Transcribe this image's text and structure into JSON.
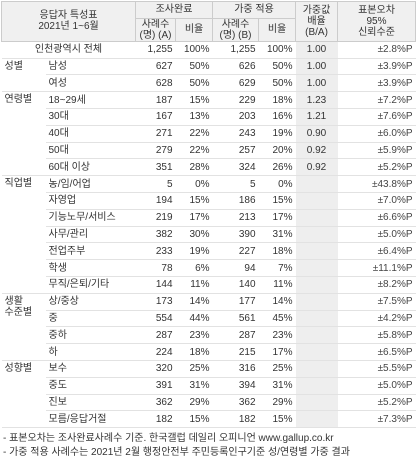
{
  "header": {
    "title": "응답자 특성표",
    "period": "2021년 1~6월",
    "survey": "조사완료",
    "weighted": "가중 적용",
    "ratio": [
      "가중값",
      "배율",
      "(B/A)"
    ],
    "error": [
      "표본오차",
      "95%",
      "신뢰수준"
    ],
    "n_a": [
      "사례수",
      "(명) (A)"
    ],
    "pct_a": "비율",
    "n_b": [
      "사례수",
      "(명) (B)"
    ],
    "pct_b": "비율"
  },
  "total": {
    "label": "인천광역시 전체",
    "cells": [
      "1,255",
      "100%",
      "1,255",
      "100%",
      "1.00",
      "±2.8%P"
    ]
  },
  "sections": [
    {
      "label": [
        "성별"
      ],
      "rows": [
        {
          "label": "남성",
          "cells": [
            "627",
            "50%",
            "626",
            "50%",
            "1.00",
            "±3.9%P"
          ]
        },
        {
          "label": "여성",
          "cells": [
            "628",
            "50%",
            "629",
            "50%",
            "1.00",
            "±3.9%P"
          ]
        }
      ]
    },
    {
      "label": [
        "연령별"
      ],
      "rows": [
        {
          "label": "18~29세",
          "cells": [
            "187",
            "15%",
            "229",
            "18%",
            "1.23",
            "±7.2%P"
          ]
        },
        {
          "label": "30대",
          "cells": [
            "167",
            "13%",
            "203",
            "16%",
            "1.21",
            "±7.6%P"
          ]
        },
        {
          "label": "40대",
          "cells": [
            "271",
            "22%",
            "243",
            "19%",
            "0.90",
            "±6.0%P"
          ]
        },
        {
          "label": "50대",
          "cells": [
            "279",
            "22%",
            "257",
            "20%",
            "0.92",
            "±5.9%P"
          ]
        },
        {
          "label": "60대 이상",
          "cells": [
            "351",
            "28%",
            "324",
            "26%",
            "0.92",
            "±5.2%P"
          ]
        }
      ]
    },
    {
      "label": [
        "직업별"
      ],
      "rows": [
        {
          "label": "농/임/어업",
          "cells": [
            "5",
            "0%",
            "5",
            "0%",
            null,
            "±43.8%P"
          ]
        },
        {
          "label": "자영업",
          "cells": [
            "194",
            "15%",
            "186",
            "15%",
            null,
            "±7.0%P"
          ]
        },
        {
          "label": "기능노무/서비스",
          "cells": [
            "219",
            "17%",
            "213",
            "17%",
            null,
            "±6.6%P"
          ]
        },
        {
          "label": "사무/관리",
          "cells": [
            "382",
            "30%",
            "390",
            "31%",
            null,
            "±5.0%P"
          ]
        },
        {
          "label": "전업주부",
          "cells": [
            "233",
            "19%",
            "227",
            "18%",
            null,
            "±6.4%P"
          ]
        },
        {
          "label": "학생",
          "cells": [
            "78",
            "6%",
            "94",
            "7%",
            null,
            "±11.1%P"
          ]
        },
        {
          "label": "무직/은퇴/기타",
          "cells": [
            "144",
            "11%",
            "140",
            "11%",
            null,
            "±8.2%P"
          ]
        }
      ]
    },
    {
      "label": [
        "생활",
        "수준별"
      ],
      "rows": [
        {
          "label": "상/중상",
          "cells": [
            "173",
            "14%",
            "177",
            "14%",
            null,
            "±7.5%P"
          ]
        },
        {
          "label": "중",
          "cells": [
            "554",
            "44%",
            "561",
            "45%",
            null,
            "±4.2%P"
          ]
        },
        {
          "label": "중하",
          "cells": [
            "287",
            "23%",
            "287",
            "23%",
            null,
            "±5.8%P"
          ]
        },
        {
          "label": "하",
          "cells": [
            "224",
            "18%",
            "215",
            "17%",
            null,
            "±6.5%P"
          ]
        }
      ]
    },
    {
      "label": [
        "성향별"
      ],
      "rows": [
        {
          "label": "보수",
          "cells": [
            "320",
            "25%",
            "316",
            "25%",
            null,
            "±5.5%P"
          ]
        },
        {
          "label": "중도",
          "cells": [
            "391",
            "31%",
            "394",
            "31%",
            null,
            "±5.0%P"
          ]
        },
        {
          "label": "진보",
          "cells": [
            "362",
            "29%",
            "362",
            "29%",
            null,
            "±5.2%P"
          ]
        },
        {
          "label": "모름/응답거절",
          "cells": [
            "182",
            "15%",
            "182",
            "15%",
            null,
            "±7.3%P"
          ]
        }
      ]
    }
  ],
  "notes": [
    "- 표본오차는 조사완료사례수 기준. 한국갤럽 데일리 오피니언 www.gallup.co.kr",
    "- 가중 적용 사례수는 2021년 2월 행정안전부 주민등록인구기준 성/연령별 가중 결과"
  ]
}
